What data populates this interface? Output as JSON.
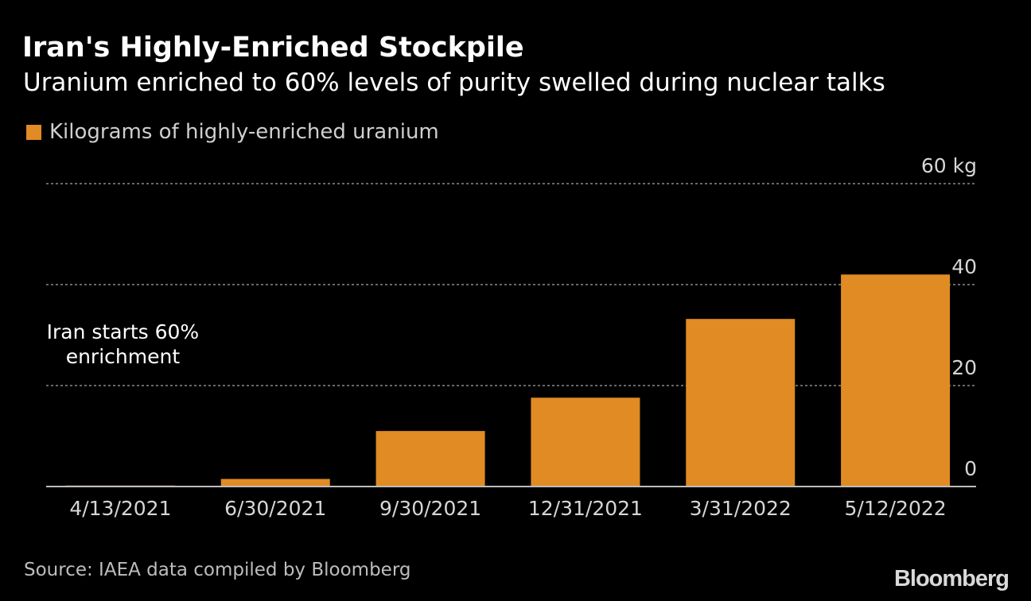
{
  "header": {
    "title": "Iran's Highly-Enriched Stockpile",
    "subtitle": "Uranium enriched to 60% levels of purity swelled during nuclear talks"
  },
  "footer": {
    "source": "Source: IAEA data compiled by Bloomberg",
    "logo": "Bloomberg"
  },
  "colors": {
    "bar": "#e08b23",
    "background": "#000000",
    "grid": "#8a8a8a"
  },
  "chart_data": {
    "type": "bar",
    "categories": [
      "4/13/2021",
      "6/30/2021",
      "9/30/2021",
      "12/31/2021",
      "3/31/2022",
      "5/12/2022"
    ],
    "series": [
      {
        "name": "Kilograms of highly-enriched uranium",
        "values": [
          0.2,
          1.5,
          11.0,
          17.6,
          33.2,
          42.0
        ]
      }
    ],
    "ylim": [
      0,
      60
    ],
    "yticks": [
      0,
      20,
      40,
      60
    ],
    "ytick_labels": [
      "0",
      "20",
      "40",
      "60 kg"
    ],
    "grid": true,
    "legend_position": "top-left",
    "annotations": [
      {
        "lines": [
          "Iran starts 60%",
          "enrichment"
        ],
        "category": "4/13/2021"
      }
    ]
  }
}
